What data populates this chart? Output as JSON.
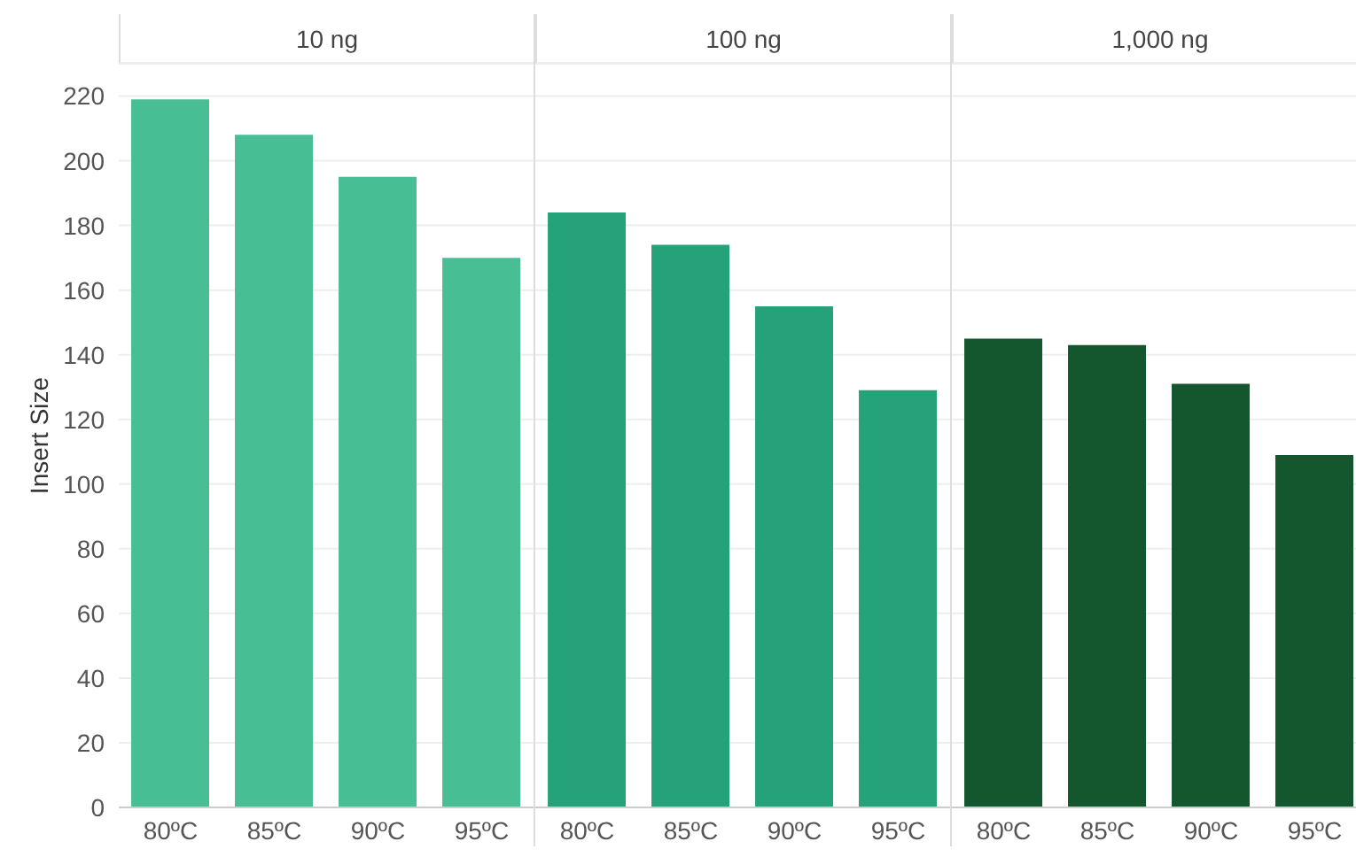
{
  "chart_data": [
    {
      "type": "bar",
      "title": "10 ng",
      "ylabel": "Insert Size",
      "categories": [
        "80ºC",
        "85ºC",
        "90ºC",
        "95ºC"
      ],
      "values": [
        219,
        208,
        195,
        170
      ],
      "color": "#48be94",
      "ylim": [
        0,
        230
      ],
      "yticks": [
        0,
        20,
        40,
        60,
        80,
        100,
        120,
        140,
        160,
        180,
        200,
        220
      ],
      "grid": "y"
    },
    {
      "type": "bar",
      "title": "100 ng",
      "categories": [
        "80ºC",
        "85ºC",
        "90ºC",
        "95ºC"
      ],
      "values": [
        184,
        174,
        155,
        129
      ],
      "color": "#26a27a",
      "ylim": [
        0,
        230
      ],
      "yticks": [
        0,
        20,
        40,
        60,
        80,
        100,
        120,
        140,
        160,
        180,
        200,
        220
      ],
      "grid": "y",
      "tick_labels": "x"
    },
    {
      "type": "bar",
      "title": "1,000 ng",
      "categories": [
        "80ºC",
        "85ºC",
        "90ºC",
        "95ºC"
      ],
      "values": [
        145,
        143,
        131,
        109
      ],
      "color": "#14572e",
      "ylim": [
        0,
        230
      ],
      "yticks": [
        0,
        20,
        40,
        60,
        80,
        100,
        120,
        140,
        160,
        180,
        200,
        220
      ],
      "grid": "y",
      "tick_labels": "x"
    }
  ]
}
